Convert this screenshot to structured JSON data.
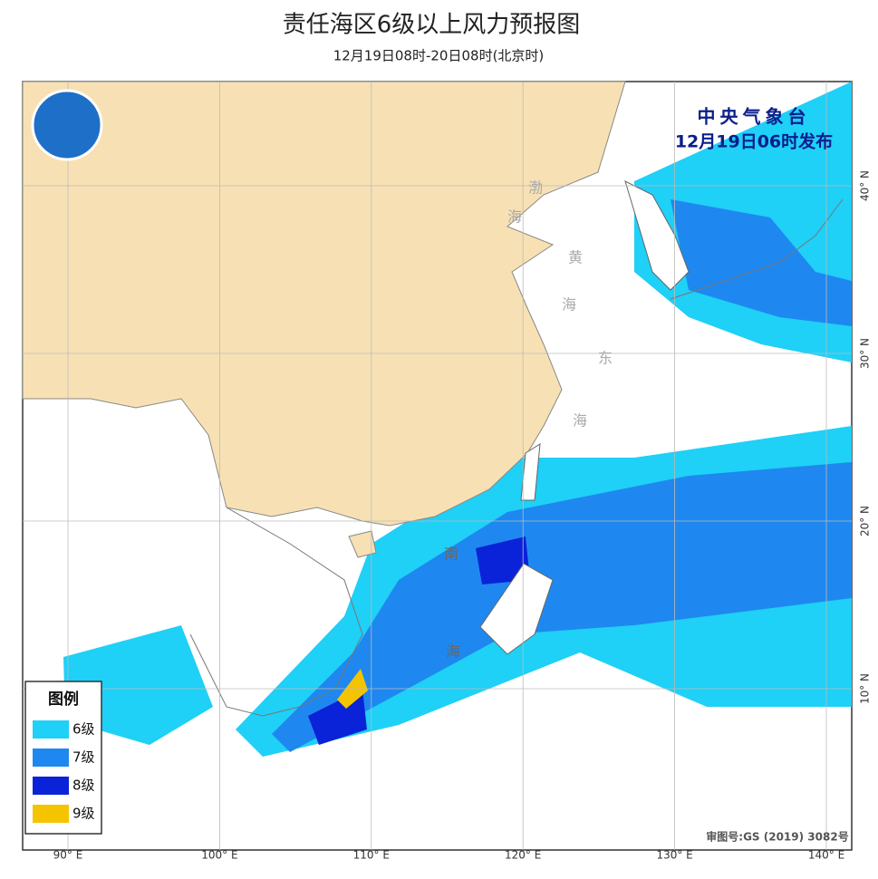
{
  "header": {
    "title": "责任海区6级以上风力预报图",
    "subtitle": "12月19日08时-20日08时(北京时)"
  },
  "issuer": {
    "agency": "中央气象台",
    "time": "12月19日06时发布"
  },
  "map": {
    "lon_ticks": [
      {
        "value": 90,
        "label": "90° E"
      },
      {
        "value": 100,
        "label": "100° E"
      },
      {
        "value": 110,
        "label": "110° E"
      },
      {
        "value": 120,
        "label": "120° E"
      },
      {
        "value": 130,
        "label": "130° E"
      },
      {
        "value": 140,
        "label": "140° E"
      }
    ],
    "lat_ticks": [
      {
        "value": 40,
        "label": "40° N"
      },
      {
        "value": 30,
        "label": "30° N"
      },
      {
        "value": 20,
        "label": "20° N"
      },
      {
        "value": 10,
        "label": "10° N"
      }
    ],
    "sea_labels": [
      "渤",
      "海",
      "黄",
      "海",
      "东",
      "海",
      "南",
      "海"
    ]
  },
  "legend": {
    "title": "图例",
    "items": [
      {
        "label": "6级",
        "color": "#1fd0f7"
      },
      {
        "label": "7级",
        "color": "#1e88f0"
      },
      {
        "label": "8级",
        "color": "#0a22d8"
      },
      {
        "label": "9级",
        "color": "#f5c400"
      }
    ]
  },
  "footer": {
    "approval": "审图号:GS (2019) 3082号"
  }
}
